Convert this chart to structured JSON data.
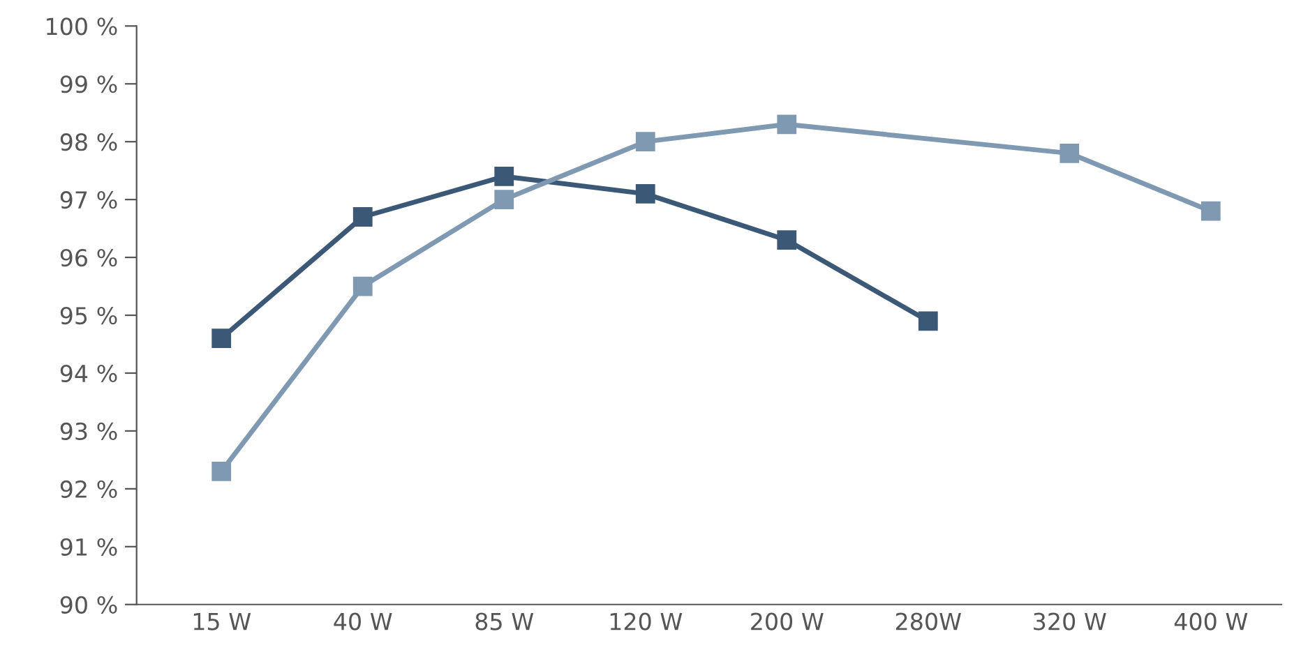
{
  "chart_data": {
    "type": "line",
    "categories": [
      "15 W",
      "40 W",
      "85 W",
      "120 W",
      "200 W",
      "280W",
      "320 W",
      "400 W"
    ],
    "series": [
      {
        "color": "#3b5877",
        "values": [
          94.6,
          96.7,
          97.4,
          97.1,
          96.3,
          94.9,
          null,
          null
        ]
      },
      {
        "color": "#7f99b2",
        "values": [
          92.3,
          95.5,
          97.0,
          98.0,
          98.3,
          null,
          97.8,
          96.8
        ]
      }
    ],
    "ylim": [
      90,
      100
    ],
    "yticks": [
      {
        "value": 90,
        "label": "90 %"
      },
      {
        "value": 91,
        "label": "91 %"
      },
      {
        "value": 92,
        "label": "92 %"
      },
      {
        "value": 93,
        "label": "93 %"
      },
      {
        "value": 94,
        "label": "94 %"
      },
      {
        "value": 95,
        "label": "95 %"
      },
      {
        "value": 96,
        "label": "96 %"
      },
      {
        "value": 97,
        "label": "97 %"
      },
      {
        "value": 98,
        "label": "98 %"
      },
      {
        "value": 99,
        "label": "99 %"
      },
      {
        "value": 100,
        "label": "100 %"
      }
    ],
    "marker": "square",
    "line_style": "solid",
    "grid": false,
    "legend": false
  }
}
